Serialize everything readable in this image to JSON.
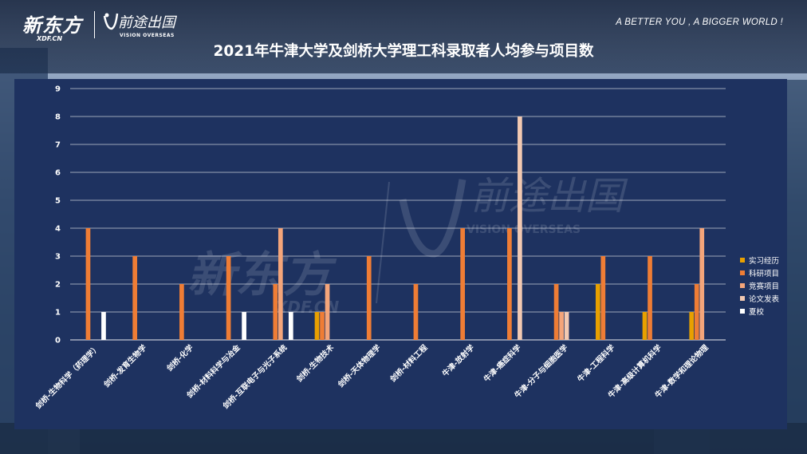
{
  "header": {
    "brand_logo": "新东方",
    "brand_sub": "XDF.CN",
    "partner_logo": "前途出国",
    "partner_sub": "VISION OVERSEAS",
    "tagline": "A BETTER YOU , A BIGGER WORLD !"
  },
  "colors": {
    "series": [
      "#e8a000",
      "#ef7d35",
      "#f4a57a",
      "#f2c9b2",
      "#ffffff"
    ],
    "panel": "#1e3260",
    "grid": "#ffffff"
  },
  "chart_data": {
    "type": "bar",
    "title": "2021年牛津大学及剑桥大学理工科录取者人均参与项目数",
    "xlabel": "",
    "ylabel": "",
    "ylim": [
      0,
      9
    ],
    "yticks": [
      0,
      1,
      2,
      3,
      4,
      5,
      6,
      7,
      8,
      9
    ],
    "grid": true,
    "legend_position": "right",
    "categories": [
      "剑桥-生物科学（药理学）",
      "剑桥-发育生物学",
      "剑桥-化学",
      "剑桥-材料科学与冶金",
      "剑桥-互联电子与光子系统",
      "剑桥-生物技术",
      "剑桥-天体物理学",
      "剑桥-材料工程",
      "牛津-放射学",
      "牛津-癌症科学",
      "牛津-分子与细胞医学",
      "牛津-工程科学",
      "牛津-高级计算机科学",
      "牛津-数学和理论物理"
    ],
    "series": [
      {
        "name": "实习经历",
        "values": [
          0,
          0,
          0,
          0,
          0,
          1,
          0,
          0,
          0,
          0,
          0,
          2,
          1,
          1
        ]
      },
      {
        "name": "科研项目",
        "values": [
          4,
          3,
          2,
          3,
          2,
          1,
          3,
          2,
          4,
          4,
          2,
          3,
          3,
          2
        ]
      },
      {
        "name": "竞赛项目",
        "values": [
          0,
          0,
          0,
          0,
          4,
          2,
          0,
          0,
          0,
          0,
          1,
          0,
          0,
          4
        ]
      },
      {
        "name": "论文发表",
        "values": [
          0,
          0,
          0,
          0,
          0,
          0,
          0,
          0,
          0,
          8,
          1,
          0,
          0,
          0
        ]
      },
      {
        "name": "夏校",
        "values": [
          1,
          0,
          0,
          1,
          1,
          0,
          0,
          0,
          0,
          0,
          0,
          0,
          0,
          0
        ]
      }
    ]
  }
}
